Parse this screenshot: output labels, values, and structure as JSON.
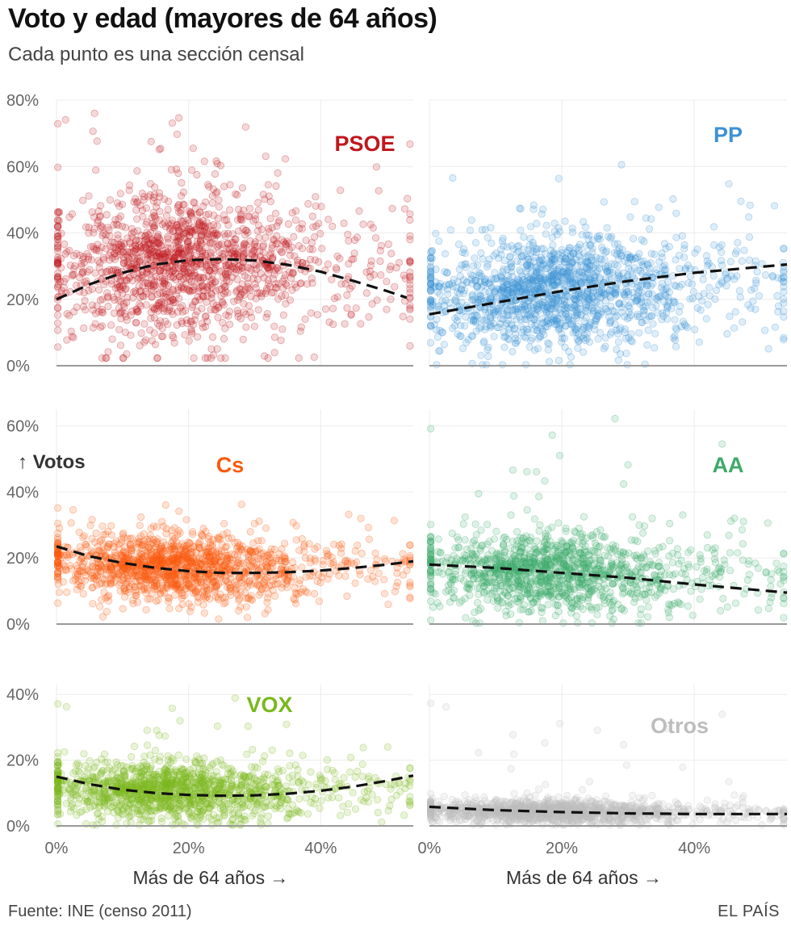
{
  "header": {
    "title": "Voto y edad (mayores de 64 años)",
    "subtitle": "Cada punto es una sección censal"
  },
  "footer": {
    "source": "Fuente: INE (censo 2011)",
    "brand": "EL PAÍS"
  },
  "chart_data": [
    {
      "type": "scatter",
      "series_name": "PSOE",
      "color": "#c0161b",
      "xlabel": "",
      "ylabel": "",
      "x_ticks": [
        "0%",
        "20%",
        "40%"
      ],
      "y_ticks": [
        "0%",
        "20%",
        "40%",
        "60%",
        "80%"
      ],
      "xlim": [
        0,
        0.54
      ],
      "ylim": [
        0,
        0.8
      ],
      "trend": {
        "x": [
          0,
          0.05,
          0.1,
          0.15,
          0.2,
          0.25,
          0.3,
          0.35,
          0.4,
          0.45,
          0.5,
          0.53
        ],
        "y": [
          0.2,
          0.245,
          0.28,
          0.305,
          0.318,
          0.321,
          0.317,
          0.304,
          0.283,
          0.255,
          0.225,
          0.205
        ]
      },
      "cloud": {
        "x_center": 0.18,
        "x_spread": 0.1,
        "y_center": 0.31,
        "y_spread": 0.11,
        "y_range": [
          0.02,
          0.78
        ]
      }
    },
    {
      "type": "scatter",
      "series_name": "PP",
      "color": "#3c92d4",
      "xlabel": "",
      "ylabel": "",
      "x_ticks": [
        "0%",
        "20%",
        "40%"
      ],
      "y_ticks": [
        "0%",
        "20%",
        "40%",
        "60%",
        "80%"
      ],
      "xlim": [
        0,
        0.54
      ],
      "ylim": [
        0,
        0.8
      ],
      "trend": {
        "x": [
          0,
          0.1,
          0.2,
          0.3,
          0.4,
          0.54
        ],
        "y": [
          0.155,
          0.19,
          0.225,
          0.255,
          0.28,
          0.305
        ]
      },
      "cloud": {
        "x_center": 0.18,
        "x_spread": 0.1,
        "y_center": 0.22,
        "y_spread": 0.085,
        "y_range": [
          0.0,
          0.62
        ]
      }
    },
    {
      "type": "scatter",
      "series_name": "Cs",
      "color": "#fb5a0c",
      "xlabel": "",
      "ylabel": "↑ Votos",
      "x_ticks": [
        "0%",
        "20%",
        "40%"
      ],
      "y_ticks": [
        "0%",
        "20%",
        "40%",
        "60%"
      ],
      "xlim": [
        0,
        0.54
      ],
      "ylim": [
        0,
        0.65
      ],
      "trend": {
        "x": [
          0,
          0.05,
          0.1,
          0.15,
          0.2,
          0.25,
          0.3,
          0.35,
          0.4,
          0.45,
          0.5,
          0.54
        ],
        "y": [
          0.235,
          0.205,
          0.185,
          0.17,
          0.16,
          0.155,
          0.155,
          0.157,
          0.162,
          0.17,
          0.18,
          0.19
        ]
      },
      "cloud": {
        "x_center": 0.17,
        "x_spread": 0.1,
        "y_center": 0.17,
        "y_spread": 0.05,
        "y_range": [
          0.0,
          0.37
        ]
      }
    },
    {
      "type": "scatter",
      "series_name": "AA",
      "color": "#3daa6a",
      "xlabel": "",
      "ylabel": "",
      "x_ticks": [
        "0%",
        "20%",
        "40%"
      ],
      "y_ticks": [
        "0%",
        "20%",
        "40%",
        "60%"
      ],
      "xlim": [
        0,
        0.54
      ],
      "ylim": [
        0,
        0.65
      ],
      "trend": {
        "x": [
          0,
          0.1,
          0.2,
          0.3,
          0.4,
          0.54
        ],
        "y": [
          0.18,
          0.17,
          0.155,
          0.14,
          0.12,
          0.095
        ]
      },
      "cloud": {
        "x_center": 0.17,
        "x_spread": 0.1,
        "y_center": 0.155,
        "y_spread": 0.06,
        "y_range": [
          0.0,
          0.64
        ]
      }
    },
    {
      "type": "scatter",
      "series_name": "VOX",
      "color": "#7ab81e",
      "xlabel": "Más de 64 años →",
      "ylabel": "",
      "x_ticks": [
        "0%",
        "20%",
        "40%"
      ],
      "y_ticks": [
        "0%",
        "20%",
        "40%"
      ],
      "xlim": [
        0,
        0.54
      ],
      "ylim": [
        0,
        0.43
      ],
      "trend": {
        "x": [
          0,
          0.05,
          0.1,
          0.15,
          0.2,
          0.25,
          0.3,
          0.35,
          0.4,
          0.45,
          0.5,
          0.54
        ],
        "y": [
          0.15,
          0.127,
          0.11,
          0.1,
          0.094,
          0.092,
          0.093,
          0.098,
          0.107,
          0.12,
          0.137,
          0.153
        ]
      },
      "cloud": {
        "x_center": 0.16,
        "x_spread": 0.1,
        "y_center": 0.105,
        "y_spread": 0.045,
        "y_range": [
          0.0,
          0.4
        ]
      }
    },
    {
      "type": "scatter",
      "series_name": "Otros",
      "color": "#bdbdbd",
      "xlabel": "Más de 64 años →",
      "ylabel": "",
      "x_ticks": [
        "0%",
        "20%",
        "40%"
      ],
      "y_ticks": [
        "0%",
        "20%",
        "40%"
      ],
      "xlim": [
        0,
        0.54
      ],
      "ylim": [
        0,
        0.43
      ],
      "trend": {
        "x": [
          0,
          0.1,
          0.2,
          0.3,
          0.4,
          0.54
        ],
        "y": [
          0.058,
          0.048,
          0.042,
          0.038,
          0.036,
          0.036
        ]
      },
      "cloud": {
        "x_center": 0.17,
        "x_spread": 0.1,
        "y_center": 0.042,
        "y_spread": 0.018,
        "y_range": [
          0.0,
          0.41
        ]
      }
    }
  ]
}
